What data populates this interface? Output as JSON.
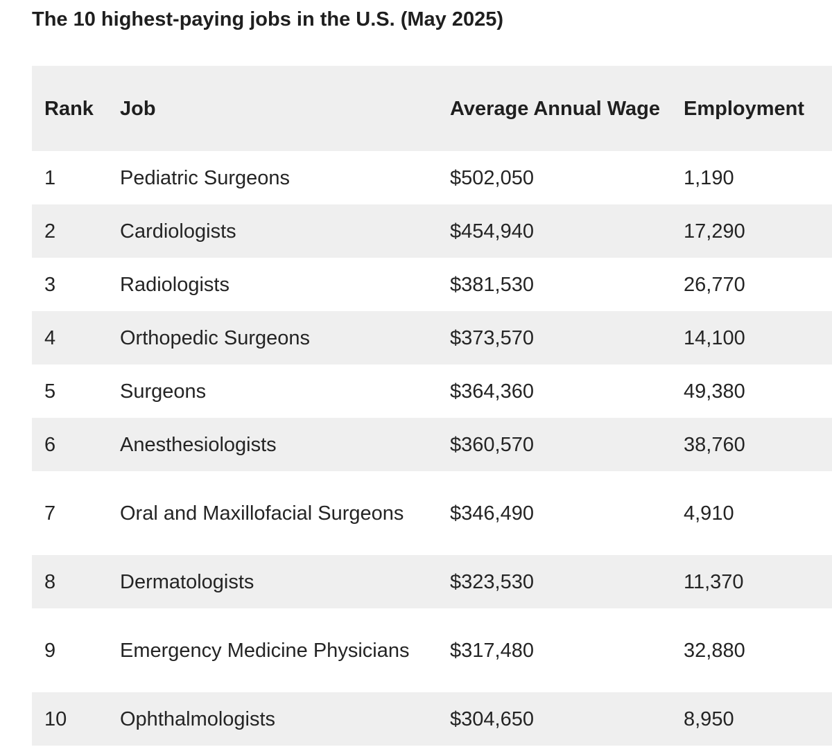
{
  "title": "The 10 highest-paying jobs in the U.S. (May 2025)",
  "table": {
    "headers": {
      "rank": "Rank",
      "job": "Job",
      "wage": "Average Annual Wage",
      "employment": "Employment"
    },
    "rows": [
      {
        "rank": "1",
        "job": "Pediatric Surgeons",
        "wage": "$502,050",
        "employment": "1,190"
      },
      {
        "rank": "2",
        "job": "Cardiologists",
        "wage": "$454,940",
        "employment": "17,290"
      },
      {
        "rank": "3",
        "job": "Radiologists",
        "wage": "$381,530",
        "employment": "26,770"
      },
      {
        "rank": "4",
        "job": "Orthopedic Surgeons",
        "wage": "$373,570",
        "employment": "14,100"
      },
      {
        "rank": "5",
        "job": "Surgeons",
        "wage": "$364,360",
        "employment": "49,380"
      },
      {
        "rank": "6",
        "job": "Anesthesiologists",
        "wage": "$360,570",
        "employment": "38,760"
      },
      {
        "rank": "7",
        "job": "Oral and Maxillofacial Surgeons",
        "wage": "$346,490",
        "employment": "4,910"
      },
      {
        "rank": "8",
        "job": "Dermatologists",
        "wage": "$323,530",
        "employment": "11,370"
      },
      {
        "rank": "9",
        "job": "Emergency Medicine Physicians",
        "wage": "$317,480",
        "employment": "32,880"
      },
      {
        "rank": "10",
        "job": "Ophthalmologists",
        "wage": "$304,650",
        "employment": "8,950"
      }
    ]
  }
}
